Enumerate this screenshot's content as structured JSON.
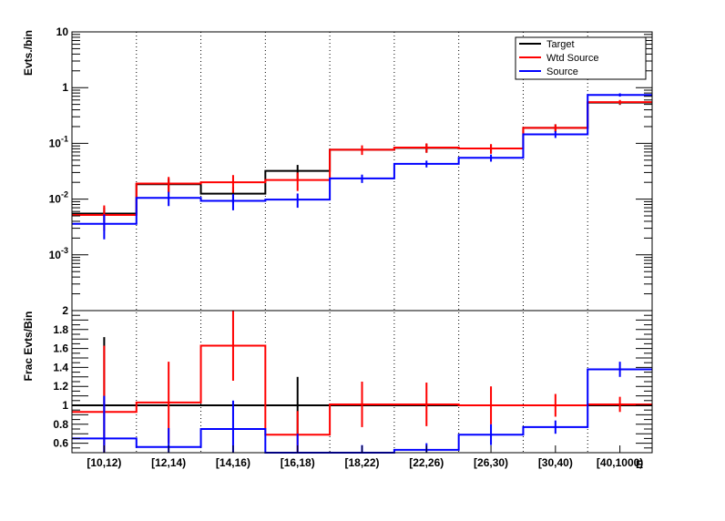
{
  "chart_data": [
    {
      "type": "line",
      "ylabel": "Evts./bin",
      "yscale": "log",
      "ylim": [
        0.0001,
        10
      ],
      "y_ticks": [
        {
          "value": 0.001,
          "base": "10",
          "exp": "-3"
        },
        {
          "value": 0.01,
          "base": "10",
          "exp": "-2"
        },
        {
          "value": 0.1,
          "base": "10",
          "exp": "-1"
        },
        {
          "value": 1,
          "base": "1",
          "exp": ""
        },
        {
          "value": 10,
          "base": "10",
          "exp": ""
        }
      ],
      "categories": [
        "[10,12)",
        "[12,14)",
        "[14,16)",
        "[16,18)",
        "[18,22)",
        "[22,26)",
        "[26,30)",
        "[30,40)",
        "[40,1000)"
      ],
      "legend": {
        "placement": "top-right",
        "entries": [
          "Target",
          "Wtd Source",
          "Source"
        ]
      },
      "series": [
        {
          "name": "Target",
          "color": "#000000",
          "values": [
            0.0055,
            0.0185,
            0.0125,
            0.032,
            0.077,
            0.083,
            0.081,
            0.19,
            0.54
          ],
          "errors": [
            0.0016,
            0.005,
            0.004,
            0.009,
            0.014,
            0.015,
            0.014,
            0.03,
            0.05
          ]
        },
        {
          "name": "Wtd Source",
          "color": "#ff0000",
          "values": [
            0.0052,
            0.019,
            0.02,
            0.022,
            0.077,
            0.084,
            0.081,
            0.19,
            0.55
          ],
          "errors": [
            0.0025,
            0.006,
            0.007,
            0.008,
            0.015,
            0.016,
            0.016,
            0.03,
            0.05
          ]
        },
        {
          "name": "Source",
          "color": "#0000ff",
          "values": [
            0.0036,
            0.0105,
            0.0093,
            0.0098,
            0.0235,
            0.043,
            0.055,
            0.145,
            0.74
          ],
          "errors": [
            0.0017,
            0.003,
            0.003,
            0.0028,
            0.004,
            0.006,
            0.008,
            0.02,
            0.05
          ]
        }
      ]
    },
    {
      "type": "line",
      "ylabel": "Frac Evts/Bin",
      "xlabel": "E",
      "ylim": [
        0.5,
        2
      ],
      "y_ticks": [
        "0.6",
        "0.8",
        "1",
        "1.2",
        "1.4",
        "1.6",
        "1.8",
        "2"
      ],
      "categories": [
        "[10,12)",
        "[12,14)",
        "[14,16)",
        "[16,18)",
        "[18,22)",
        "[22,26)",
        "[26,30)",
        "[30,40)",
        "[40,1000)"
      ],
      "series": [
        {
          "name": "Target",
          "color": "#000000",
          "values": [
            1,
            1,
            1,
            1,
            1,
            1,
            1,
            1,
            1
          ],
          "errors": [
            0.72,
            0,
            0,
            0.3,
            0,
            0,
            0,
            0,
            0
          ]
        },
        {
          "name": "Wtd Source",
          "color": "#ff0000",
          "values": [
            0.93,
            1.03,
            1.63,
            0.69,
            1.01,
            1.01,
            1.0,
            1.0,
            1.01
          ],
          "errors": [
            0.7,
            0.43,
            0.37,
            0.25,
            0.24,
            0.23,
            0.2,
            0.12,
            0.08
          ]
        },
        {
          "name": "Source",
          "color": "#0000ff",
          "values": [
            0.65,
            0.56,
            0.75,
            0.5,
            0.5,
            0.53,
            0.69,
            0.77,
            1.38
          ],
          "errors": [
            0.45,
            0.2,
            0.3,
            0.2,
            0.08,
            0.07,
            0.11,
            0.07,
            0.08
          ]
        }
      ]
    }
  ]
}
